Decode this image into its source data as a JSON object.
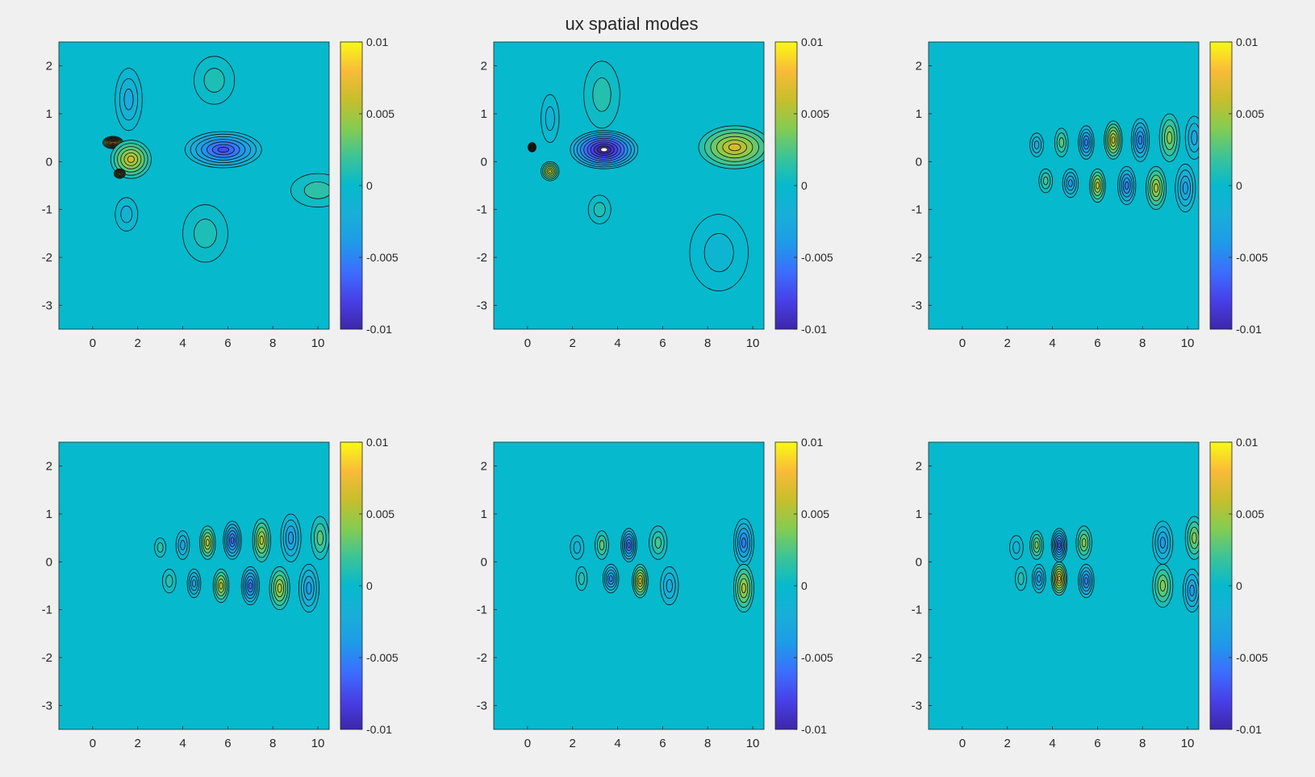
{
  "figure": {
    "title": "ux spatial modes",
    "background": "#f0f0f0",
    "field_color": "#06b5cd",
    "colormap": "parula"
  },
  "chart_data": [
    {
      "type": "heatmap",
      "subtitle": "",
      "xlim": [
        -1.5,
        10.5
      ],
      "ylim": [
        -3.5,
        2.5
      ],
      "xticks": [
        "0",
        "2",
        "4",
        "6",
        "8",
        "10"
      ],
      "xtick_values": [
        0,
        2,
        4,
        6,
        8,
        10
      ],
      "yticks": [
        "2",
        "1",
        "0",
        "-1",
        "-2",
        "-3"
      ],
      "ytick_values": [
        2,
        1,
        0,
        -1,
        -2,
        -3
      ],
      "colorbar": {
        "ticks": [
          "0.01",
          "0.005",
          "0",
          "-0.005",
          "-0.01"
        ],
        "tick_values": [
          0.01,
          0.005,
          0,
          -0.005,
          -0.01
        ],
        "clim": [
          -0.01,
          0.01
        ]
      },
      "features": [
        {
          "x": 0.9,
          "y": 0.4,
          "sx": 0.45,
          "sy": 0.13,
          "a": 0.013
        },
        {
          "x": 1.7,
          "y": 0.05,
          "sx": 0.9,
          "sy": 0.4,
          "a": 0.007
        },
        {
          "x": 1.2,
          "y": -0.25,
          "sx": 0.25,
          "sy": 0.1,
          "a": 0.01
        },
        {
          "x": 5.8,
          "y": 0.25,
          "sx": 1.7,
          "sy": 0.38,
          "a": -0.0085
        },
        {
          "x": 1.6,
          "y": 1.3,
          "sx": 0.6,
          "sy": 0.65,
          "a": -0.0035
        },
        {
          "x": 1.5,
          "y": -1.1,
          "sx": 0.5,
          "sy": 0.35,
          "a": -0.0025
        },
        {
          "x": 5.4,
          "y": 1.7,
          "sx": 0.9,
          "sy": 0.5,
          "a": 0.0015
        },
        {
          "x": 5.0,
          "y": -1.5,
          "sx": 1.0,
          "sy": 0.6,
          "a": 0.0015
        },
        {
          "x": 10.0,
          "y": -0.6,
          "sx": 1.2,
          "sy": 0.35,
          "a": 0.0025
        }
      ]
    },
    {
      "type": "heatmap",
      "subtitle": "",
      "xlim": [
        -1.5,
        10.5
      ],
      "ylim": [
        -3.5,
        2.5
      ],
      "xticks": [
        "0",
        "2",
        "4",
        "6",
        "8",
        "10"
      ],
      "xtick_values": [
        0,
        2,
        4,
        6,
        8,
        10
      ],
      "yticks": [
        "2",
        "1",
        "0",
        "-1",
        "-2",
        "-3"
      ],
      "ytick_values": [
        2,
        1,
        0,
        -1,
        -2,
        -3
      ],
      "colorbar": {
        "ticks": [
          "0.01",
          "0.005",
          "0",
          "-0.005",
          "-0.01"
        ],
        "tick_values": [
          0.01,
          0.005,
          0,
          -0.005,
          -0.01
        ],
        "clim": [
          -0.01,
          0.01
        ]
      },
      "features": [
        {
          "x": 3.4,
          "y": 0.25,
          "sx": 1.5,
          "sy": 0.4,
          "a": -0.012
        },
        {
          "x": 0.2,
          "y": 0.3,
          "sx": 0.18,
          "sy": 0.1,
          "a": 0.012
        },
        {
          "x": 1.0,
          "y": -0.2,
          "sx": 0.4,
          "sy": 0.2,
          "a": 0.007
        },
        {
          "x": 9.2,
          "y": 0.3,
          "sx": 1.6,
          "sy": 0.45,
          "a": 0.0075
        },
        {
          "x": 3.3,
          "y": 1.4,
          "sx": 0.8,
          "sy": 0.7,
          "a": 0.002
        },
        {
          "x": 1.0,
          "y": 0.9,
          "sx": 0.4,
          "sy": 0.5,
          "a": -0.002
        },
        {
          "x": 8.5,
          "y": -1.9,
          "sx": 1.3,
          "sy": 0.8,
          "a": -0.0015
        },
        {
          "x": 3.2,
          "y": -1.0,
          "sx": 0.5,
          "sy": 0.3,
          "a": 0.0015
        }
      ]
    },
    {
      "type": "heatmap",
      "subtitle": "",
      "xlim": [
        -1.5,
        10.5
      ],
      "ylim": [
        -3.5,
        2.5
      ],
      "xticks": [
        "0",
        "2",
        "4",
        "6",
        "8",
        "10"
      ],
      "xtick_values": [
        0,
        2,
        4,
        6,
        8,
        10
      ],
      "yticks": [
        "2",
        "1",
        "0",
        "-1",
        "-2",
        "-3"
      ],
      "ytick_values": [
        2,
        1,
        0,
        -1,
        -2,
        -3
      ],
      "colorbar": {
        "ticks": [
          "0.01",
          "0.005",
          "0",
          "-0.005",
          "-0.01"
        ],
        "tick_values": [
          0.01,
          0.005,
          0,
          -0.005,
          -0.01
        ],
        "clim": [
          -0.01,
          0.01
        ]
      },
      "features": [
        {
          "x": 3.3,
          "y": 0.35,
          "sx": 0.3,
          "sy": 0.25,
          "a": -0.003
        },
        {
          "x": 4.4,
          "y": 0.4,
          "sx": 0.3,
          "sy": 0.3,
          "a": 0.004
        },
        {
          "x": 5.5,
          "y": 0.4,
          "sx": 0.35,
          "sy": 0.35,
          "a": -0.0065
        },
        {
          "x": 6.7,
          "y": 0.45,
          "sx": 0.4,
          "sy": 0.4,
          "a": 0.007
        },
        {
          "x": 7.9,
          "y": 0.45,
          "sx": 0.4,
          "sy": 0.45,
          "a": -0.0065
        },
        {
          "x": 9.2,
          "y": 0.5,
          "sx": 0.45,
          "sy": 0.5,
          "a": 0.005
        },
        {
          "x": 10.3,
          "y": 0.5,
          "sx": 0.4,
          "sy": 0.45,
          "a": -0.004
        },
        {
          "x": 3.7,
          "y": -0.4,
          "sx": 0.3,
          "sy": 0.25,
          "a": 0.003
        },
        {
          "x": 4.8,
          "y": -0.45,
          "sx": 0.35,
          "sy": 0.3,
          "a": -0.005
        },
        {
          "x": 6.0,
          "y": -0.5,
          "sx": 0.35,
          "sy": 0.35,
          "a": 0.0065
        },
        {
          "x": 7.3,
          "y": -0.5,
          "sx": 0.4,
          "sy": 0.4,
          "a": -0.0065
        },
        {
          "x": 8.6,
          "y": -0.55,
          "sx": 0.45,
          "sy": 0.45,
          "a": 0.006
        },
        {
          "x": 9.9,
          "y": -0.55,
          "sx": 0.45,
          "sy": 0.5,
          "a": -0.0045
        }
      ]
    },
    {
      "type": "heatmap",
      "subtitle": "",
      "xlim": [
        -1.5,
        10.5
      ],
      "ylim": [
        -3.5,
        2.5
      ],
      "xticks": [
        "0",
        "2",
        "4",
        "6",
        "8",
        "10"
      ],
      "xtick_values": [
        0,
        2,
        4,
        6,
        8,
        10
      ],
      "yticks": [
        "2",
        "1",
        "0",
        "-1",
        "-2",
        "-3"
      ],
      "ytick_values": [
        2,
        1,
        0,
        -1,
        -2,
        -3
      ],
      "colorbar": {
        "ticks": [
          "0.01",
          "0.005",
          "0",
          "-0.005",
          "-0.01"
        ],
        "tick_values": [
          0.01,
          0.005,
          0,
          -0.005,
          -0.01
        ],
        "clim": [
          -0.01,
          0.01
        ]
      },
      "features": [
        {
          "x": 3.0,
          "y": 0.3,
          "sx": 0.25,
          "sy": 0.2,
          "a": 0.0025
        },
        {
          "x": 4.0,
          "y": 0.35,
          "sx": 0.3,
          "sy": 0.3,
          "a": -0.004
        },
        {
          "x": 5.1,
          "y": 0.4,
          "sx": 0.35,
          "sy": 0.35,
          "a": 0.0065
        },
        {
          "x": 6.2,
          "y": 0.45,
          "sx": 0.4,
          "sy": 0.4,
          "a": -0.0075
        },
        {
          "x": 7.5,
          "y": 0.45,
          "sx": 0.4,
          "sy": 0.45,
          "a": 0.0065
        },
        {
          "x": 8.8,
          "y": 0.5,
          "sx": 0.45,
          "sy": 0.5,
          "a": -0.005
        },
        {
          "x": 10.1,
          "y": 0.5,
          "sx": 0.4,
          "sy": 0.45,
          "a": 0.004
        },
        {
          "x": 3.4,
          "y": -0.4,
          "sx": 0.3,
          "sy": 0.25,
          "a": 0.002
        },
        {
          "x": 4.5,
          "y": -0.45,
          "sx": 0.3,
          "sy": 0.3,
          "a": -0.0045
        },
        {
          "x": 5.7,
          "y": -0.5,
          "sx": 0.35,
          "sy": 0.35,
          "a": 0.0065
        },
        {
          "x": 7.0,
          "y": -0.5,
          "sx": 0.4,
          "sy": 0.4,
          "a": -0.007
        },
        {
          "x": 8.3,
          "y": -0.55,
          "sx": 0.45,
          "sy": 0.45,
          "a": 0.006
        },
        {
          "x": 9.6,
          "y": -0.55,
          "sx": 0.45,
          "sy": 0.5,
          "a": -0.0045
        }
      ]
    },
    {
      "type": "heatmap",
      "subtitle": "",
      "xlim": [
        -1.5,
        10.5
      ],
      "ylim": [
        -3.5,
        2.5
      ],
      "xticks": [
        "0",
        "2",
        "4",
        "6",
        "8",
        "10"
      ],
      "xtick_values": [
        0,
        2,
        4,
        6,
        8,
        10
      ],
      "yticks": [
        "2",
        "1",
        "0",
        "-1",
        "-2",
        "-3"
      ],
      "ytick_values": [
        2,
        1,
        0,
        -1,
        -2,
        -3
      ],
      "colorbar": {
        "ticks": [
          "0.01",
          "0.005",
          "0",
          "-0.005",
          "-0.01"
        ],
        "tick_values": [
          0.01,
          0.005,
          0,
          -0.005,
          -0.01
        ],
        "clim": [
          -0.01,
          0.01
        ]
      },
      "features": [
        {
          "x": 2.2,
          "y": 0.3,
          "sx": 0.3,
          "sy": 0.25,
          "a": -0.0025
        },
        {
          "x": 3.3,
          "y": 0.35,
          "sx": 0.3,
          "sy": 0.3,
          "a": 0.004
        },
        {
          "x": 4.5,
          "y": 0.35,
          "sx": 0.35,
          "sy": 0.35,
          "a": -0.0075
        },
        {
          "x": 5.8,
          "y": 0.4,
          "sx": 0.4,
          "sy": 0.35,
          "a": 0.003
        },
        {
          "x": 9.6,
          "y": 0.4,
          "sx": 0.45,
          "sy": 0.5,
          "a": -0.0065
        },
        {
          "x": 2.4,
          "y": -0.35,
          "sx": 0.25,
          "sy": 0.25,
          "a": 0.002
        },
        {
          "x": 3.7,
          "y": -0.35,
          "sx": 0.35,
          "sy": 0.3,
          "a": -0.006
        },
        {
          "x": 5.0,
          "y": -0.4,
          "sx": 0.35,
          "sy": 0.35,
          "a": 0.0075
        },
        {
          "x": 6.3,
          "y": -0.5,
          "sx": 0.4,
          "sy": 0.4,
          "a": -0.0035
        },
        {
          "x": 9.6,
          "y": -0.55,
          "sx": 0.45,
          "sy": 0.5,
          "a": 0.006
        }
      ]
    },
    {
      "type": "heatmap",
      "subtitle": "",
      "xlim": [
        -1.5,
        10.5
      ],
      "ylim": [
        -3.5,
        2.5
      ],
      "xticks": [
        "0",
        "2",
        "4",
        "6",
        "8",
        "10"
      ],
      "xtick_values": [
        0,
        2,
        4,
        6,
        8,
        10
      ],
      "yticks": [
        "2",
        "1",
        "0",
        "-1",
        "-2",
        "-3"
      ],
      "ytick_values": [
        2,
        1,
        0,
        -1,
        -2,
        -3
      ],
      "colorbar": {
        "ticks": [
          "0.01",
          "0.005",
          "0",
          "-0.005",
          "-0.01"
        ],
        "tick_values": [
          0.01,
          0.005,
          0,
          -0.005,
          -0.01
        ],
        "clim": [
          -0.01,
          0.01
        ]
      },
      "features": [
        {
          "x": 2.4,
          "y": 0.3,
          "sx": 0.3,
          "sy": 0.25,
          "a": -0.002
        },
        {
          "x": 3.3,
          "y": 0.35,
          "sx": 0.3,
          "sy": 0.3,
          "a": 0.0045
        },
        {
          "x": 4.3,
          "y": 0.35,
          "sx": 0.35,
          "sy": 0.35,
          "a": -0.008
        },
        {
          "x": 5.4,
          "y": 0.4,
          "sx": 0.35,
          "sy": 0.35,
          "a": 0.005
        },
        {
          "x": 8.9,
          "y": 0.4,
          "sx": 0.45,
          "sy": 0.45,
          "a": -0.005
        },
        {
          "x": 10.3,
          "y": 0.5,
          "sx": 0.4,
          "sy": 0.45,
          "a": 0.005
        },
        {
          "x": 2.6,
          "y": -0.35,
          "sx": 0.25,
          "sy": 0.25,
          "a": 0.002
        },
        {
          "x": 3.4,
          "y": -0.35,
          "sx": 0.3,
          "sy": 0.3,
          "a": -0.005
        },
        {
          "x": 4.3,
          "y": -0.35,
          "sx": 0.35,
          "sy": 0.35,
          "a": 0.0085
        },
        {
          "x": 5.5,
          "y": -0.4,
          "sx": 0.35,
          "sy": 0.35,
          "a": -0.0065
        },
        {
          "x": 8.9,
          "y": -0.5,
          "sx": 0.45,
          "sy": 0.45,
          "a": 0.005
        },
        {
          "x": 10.2,
          "y": -0.6,
          "sx": 0.4,
          "sy": 0.45,
          "a": -0.005
        }
      ]
    }
  ]
}
